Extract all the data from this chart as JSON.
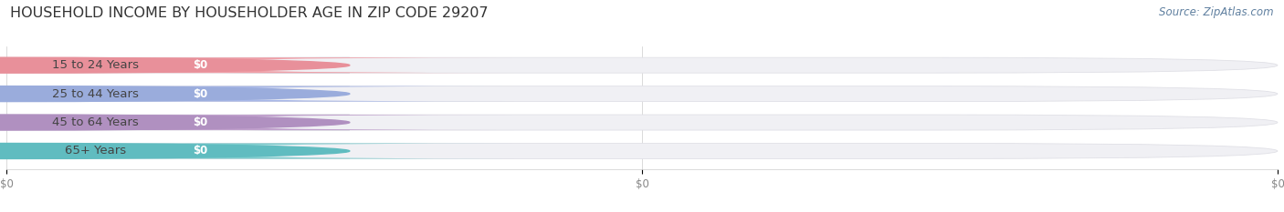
{
  "title": "HOUSEHOLD INCOME BY HOUSEHOLDER AGE IN ZIP CODE 29207",
  "source": "Source: ZipAtlas.com",
  "categories": [
    "15 to 24 Years",
    "25 to 44 Years",
    "45 to 64 Years",
    "65+ Years"
  ],
  "values": [
    0,
    0,
    0,
    0
  ],
  "bar_colors": [
    "#f0a0a8",
    "#a8b8e8",
    "#c0a0cc",
    "#7ecece"
  ],
  "dot_colors": [
    "#e8909a",
    "#9aacdc",
    "#b090c0",
    "#60bcc0"
  ],
  "bar_bg_color": "#f0f0f4",
  "bar_bg_edge": "#e0e0e6",
  "background_color": "#ffffff",
  "title_fontsize": 11.5,
  "source_fontsize": 8.5,
  "label_fontsize": 9.5,
  "value_fontsize": 8.5
}
